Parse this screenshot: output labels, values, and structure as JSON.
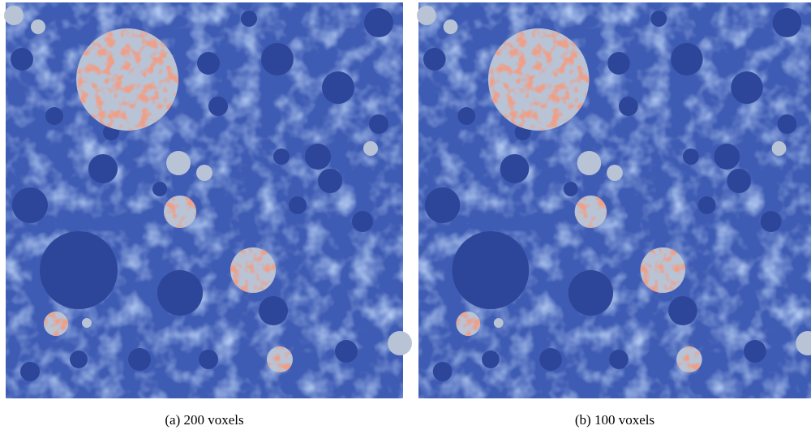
{
  "captions": [
    "(a) 200 voxels",
    "(b) 100 voxels"
  ]
}
